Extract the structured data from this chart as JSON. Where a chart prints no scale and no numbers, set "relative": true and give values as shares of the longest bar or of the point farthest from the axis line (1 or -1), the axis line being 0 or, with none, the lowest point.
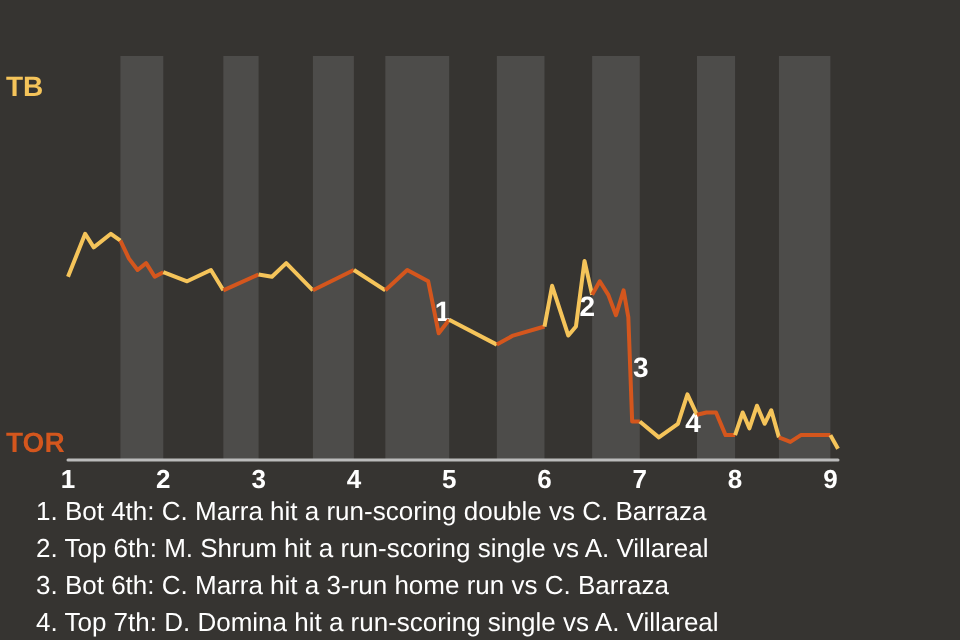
{
  "chart_data": {
    "type": "line",
    "relative": true,
    "series": [
      {
        "name": "TB",
        "color": "#f5c45a",
        "x": [
          1,
          1.18,
          1.27,
          1.45,
          1.55
        ],
        "values": [
          0.81,
          1,
          0.94,
          1,
          0.97
        ]
      },
      {
        "name": "TOR",
        "color": "#d4561d",
        "x": [
          1.55,
          1.64,
          1.73,
          1.82,
          1.91,
          2
        ],
        "values": [
          0.97,
          0.89,
          0.84,
          0.87,
          0.81,
          0.83
        ]
      },
      {
        "color": "#f5c45a",
        "x": [
          2,
          2.25,
          2.5,
          2.63
        ],
        "values": [
          0.83,
          0.79,
          0.84,
          0.75
        ]
      },
      {
        "color": "#d4561d",
        "x": [
          2.63,
          3
        ],
        "values": [
          0.75,
          0.82
        ]
      },
      {
        "color": "#f5c45a",
        "x": [
          3,
          3.14,
          3.29,
          3.57
        ],
        "values": [
          0.82,
          0.81,
          0.87,
          0.75
        ]
      },
      {
        "color": "#d4561d",
        "x": [
          3.57,
          4
        ],
        "values": [
          0.75,
          0.84
        ]
      },
      {
        "color": "#f5c45a",
        "x": [
          4,
          4.33
        ],
        "values": [
          0.84,
          0.75
        ]
      },
      {
        "color": "#d4561d",
        "x": [
          4.33,
          4.56,
          4.78,
          4.89,
          5
        ],
        "values": [
          0.75,
          0.84,
          0.79,
          0.56,
          0.62
        ]
      },
      {
        "color": "#f5c45a",
        "x": [
          5,
          5.5
        ],
        "values": [
          0.62,
          0.51
        ]
      },
      {
        "color": "#d4561d",
        "x": [
          5.5,
          5.67,
          6
        ],
        "values": [
          0.51,
          0.55,
          0.59
        ]
      },
      {
        "color": "#f5c45a",
        "x": [
          6,
          6.08,
          6.25,
          6.33,
          6.42,
          6.5
        ],
        "values": [
          0.59,
          0.77,
          0.55,
          0.59,
          0.88,
          0.73
        ]
      },
      {
        "color": "#d4561d",
        "x": [
          6.5,
          6.58,
          6.67,
          6.75,
          6.83,
          6.88,
          6.92,
          7
        ],
        "values": [
          0.73,
          0.79,
          0.73,
          0.64,
          0.75,
          0.63,
          0.17,
          0.17
        ]
      },
      {
        "color": "#f5c45a",
        "x": [
          7,
          7.2,
          7.4,
          7.5,
          7.6
        ],
        "values": [
          0.17,
          0.1,
          0.16,
          0.29,
          0.2
        ]
      },
      {
        "color": "#d4561d",
        "x": [
          7.6,
          7.7,
          7.8,
          7.9,
          8
        ],
        "values": [
          0.2,
          0.21,
          0.21,
          0.11,
          0.11
        ]
      },
      {
        "color": "#f5c45a",
        "x": [
          8,
          8.08,
          8.15,
          8.23,
          8.31,
          8.38,
          8.46
        ],
        "values": [
          0.11,
          0.21,
          0.14,
          0.24,
          0.16,
          0.22,
          0.1
        ]
      },
      {
        "color": "#d4561d",
        "x": [
          8.46,
          8.58,
          8.69,
          9
        ],
        "values": [
          0.1,
          0.08,
          0.11,
          0.11
        ]
      },
      {
        "color": "#f5c45a",
        "x": [
          9,
          9.08
        ],
        "values": [
          0.11,
          0.05
        ]
      }
    ],
    "xlim": [
      1,
      9.08
    ],
    "xticks": [
      1,
      2,
      3,
      4,
      5,
      6,
      7,
      8,
      9
    ],
    "marker": "none",
    "bands": [
      {
        "axis": "x",
        "from": 1.55,
        "to": 2,
        "color": "#4d4c4a"
      },
      {
        "axis": "x",
        "from": 2.63,
        "to": 3,
        "color": "#4d4c4a"
      },
      {
        "axis": "x",
        "from": 3.57,
        "to": 4,
        "color": "#4d4c4a"
      },
      {
        "axis": "x",
        "from": 4.33,
        "to": 5,
        "color": "#4d4c4a"
      },
      {
        "axis": "x",
        "from": 5.5,
        "to": 6,
        "color": "#4d4c4a"
      },
      {
        "axis": "x",
        "from": 6.5,
        "to": 7,
        "color": "#4d4c4a"
      },
      {
        "axis": "x",
        "from": 7.6,
        "to": 8,
        "color": "#4d4c4a"
      },
      {
        "axis": "x",
        "from": 8.46,
        "to": 9,
        "color": "#4d4c4a"
      }
    ],
    "annotations": [
      {
        "text": "1",
        "x": 4.93,
        "y": 0.66
      },
      {
        "text": "2",
        "x": 6.45,
        "y": 0.68
      },
      {
        "text": "3",
        "x": 7.01,
        "y": 0.41
      },
      {
        "text": "4",
        "x": 7.56,
        "y": 0.17
      },
      "1. Bot 4th: C. Marra hit a run-scoring double vs C. Barraza",
      "2. Top 6th: M. Shrum hit a run-scoring single vs A. Villareal",
      "3. Bot 6th: C. Marra hit a 3-run home run vs C. Barraza",
      "4. Top 7th: D. Domina hit a run-scoring single vs A. Villareal"
    ]
  }
}
